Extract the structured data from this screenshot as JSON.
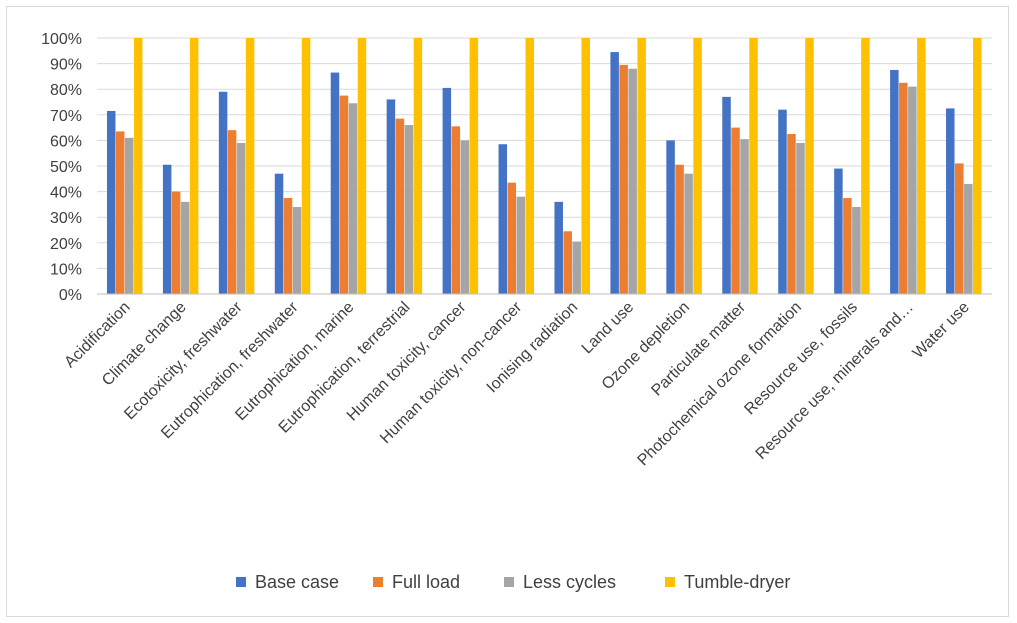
{
  "chart_data": {
    "type": "bar",
    "title": "",
    "xlabel": "",
    "ylabel": "",
    "ylim": [
      0,
      100
    ],
    "y_ticks": [
      "0%",
      "10%",
      "20%",
      "30%",
      "40%",
      "50%",
      "60%",
      "70%",
      "80%",
      "90%",
      "100%"
    ],
    "grid": true,
    "legend_position": "bottom",
    "categories": [
      "Acidification",
      "Climate change",
      "Ecotoxicity, freshwater",
      "Eutrophication, freshwater",
      "Eutrophication, marine",
      "Eutrophication, terrestrial",
      "Human toxicity, cancer",
      "Human toxicity, non-cancer",
      "Ionising radiation",
      "Land use",
      "Ozone depletion",
      "Particulate matter",
      "Photochemical ozone formation",
      "Resource use, fossils",
      "Resource use, minerals and…",
      "Water use"
    ],
    "series": [
      {
        "name": "Base case",
        "color": "#4472C4",
        "values": [
          71.5,
          50.5,
          79,
          47,
          86.5,
          76,
          80.5,
          58.5,
          36,
          94.5,
          60,
          77,
          72,
          49,
          87.5,
          72.5
        ]
      },
      {
        "name": "Full load",
        "color": "#ED7D31",
        "values": [
          63.5,
          40,
          64,
          37.5,
          77.5,
          68.5,
          65.5,
          43.5,
          24.5,
          89.5,
          50.5,
          65,
          62.5,
          37.5,
          82.5,
          51
        ]
      },
      {
        "name": "Less cycles",
        "color": "#A5A5A5",
        "values": [
          61,
          36,
          59,
          34,
          74.5,
          66,
          60,
          38,
          20.5,
          88,
          47,
          60.5,
          59,
          34,
          81,
          43
        ]
      },
      {
        "name": "Tumble-dryer",
        "color": "#FFC000",
        "values": [
          100,
          100,
          100,
          100,
          100,
          100,
          100,
          100,
          100,
          100,
          100,
          100,
          100,
          100,
          100,
          100
        ]
      }
    ]
  }
}
